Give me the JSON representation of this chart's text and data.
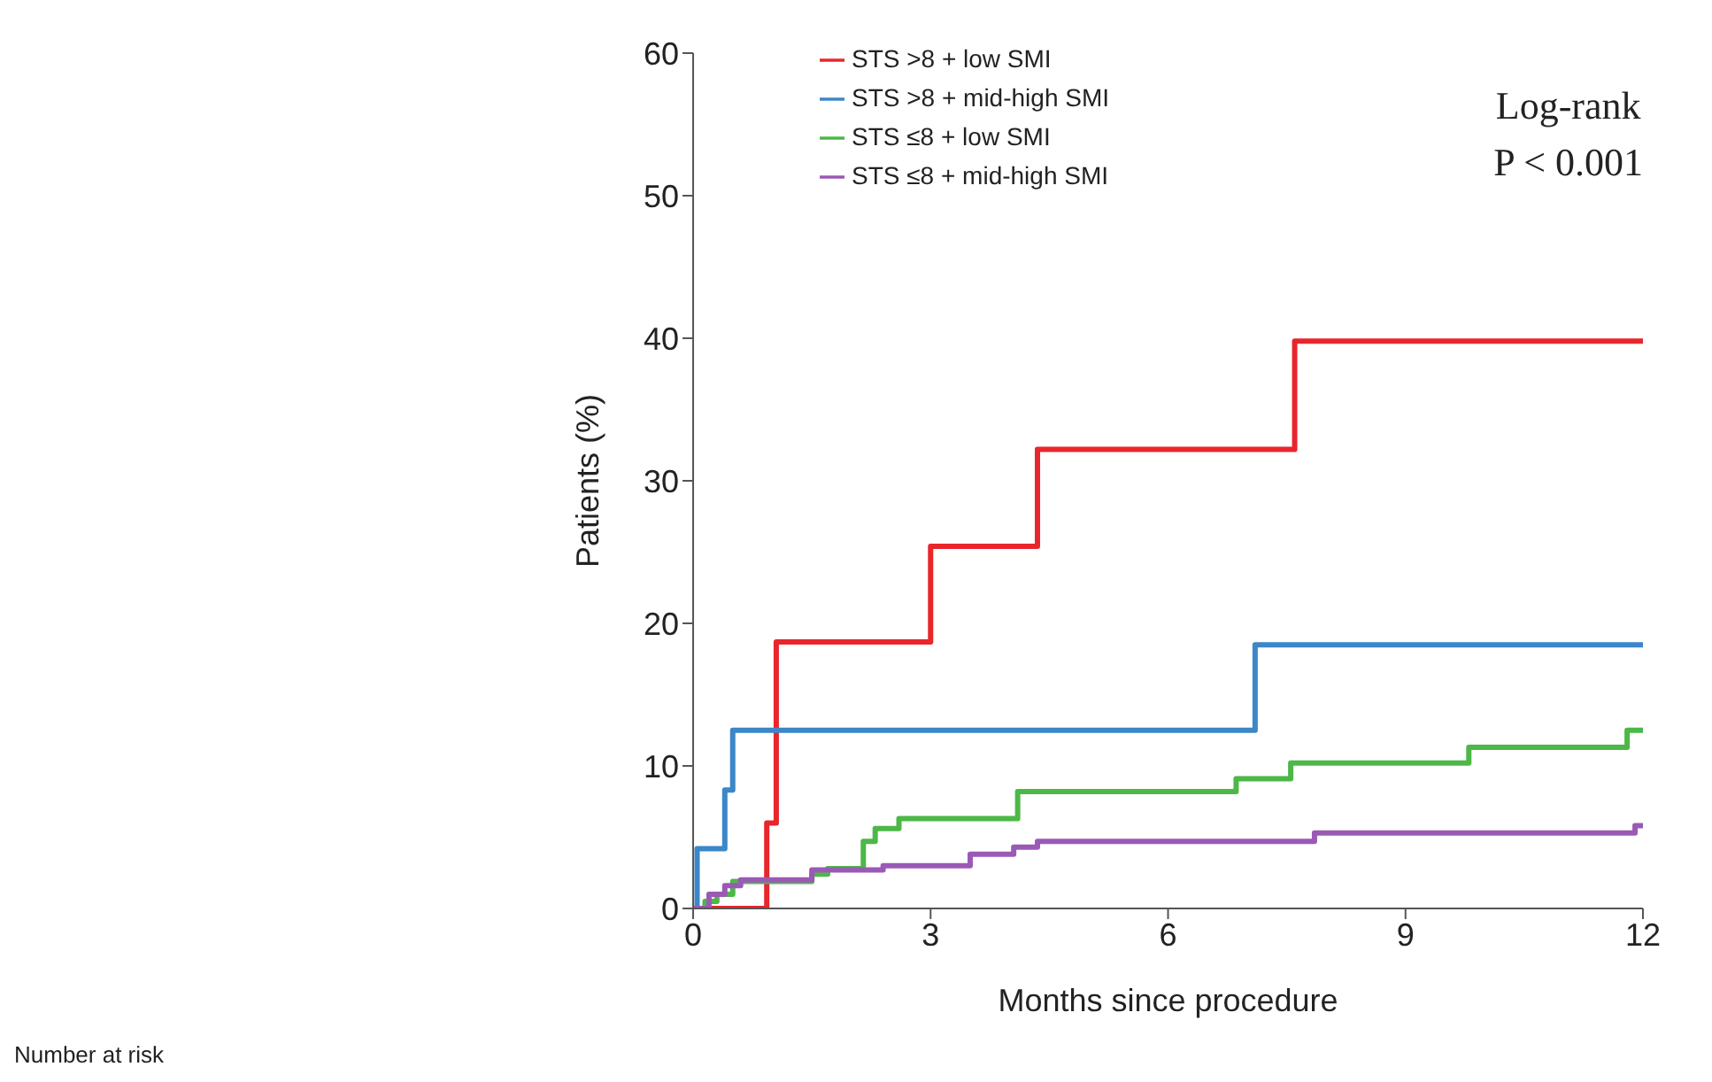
{
  "chart_data": {
    "type": "step",
    "xlabel": "Months since procedure",
    "ylabel": "Patients (%)",
    "xlim": [
      0,
      12
    ],
    "xticks": [
      0,
      3,
      6,
      9,
      12
    ],
    "ylim": [
      0,
      60
    ],
    "yticks": [
      0,
      10,
      20,
      30,
      40,
      50,
      60
    ],
    "grid": false,
    "legend": "top left",
    "marker": "none",
    "line_style": "solid",
    "annotations": [
      "Log-rank",
      "P < 0.001",
      "Number at risk"
    ],
    "series": [
      {
        "name": "STS >8 + low SMI",
        "color": "#e8262b",
        "x": [
          0,
          0.93,
          0.97,
          1.05,
          3.0,
          4.35,
          7.6,
          12
        ],
        "values": [
          0,
          6,
          6,
          18.7,
          25.4,
          32.2,
          39.8,
          39.8
        ]
      },
      {
        "name": "STS >8 + mid-high SMI",
        "color": "#3b87c8",
        "x": [
          0,
          0.05,
          0.4,
          0.5,
          7.1,
          12
        ],
        "values": [
          0,
          4.2,
          8.3,
          12.5,
          18.5,
          18.5
        ]
      },
      {
        "name": "STS ≤8 + low SMI",
        "color": "#4cb847",
        "x": [
          0,
          0.15,
          0.3,
          0.5,
          1.5,
          1.7,
          2.15,
          2.3,
          2.6,
          4.1,
          6.86,
          7.55,
          9.8,
          11.8,
          12
        ],
        "values": [
          0,
          0.5,
          1.0,
          1.9,
          2.4,
          2.8,
          4.7,
          5.6,
          6.3,
          8.2,
          9.1,
          10.2,
          11.3,
          12.5,
          12.5
        ]
      },
      {
        "name": "STS ≤8 + mid-high SMI",
        "color": "#9b59b6",
        "x": [
          0,
          0.2,
          0.4,
          0.6,
          1.5,
          2.4,
          3.5,
          4.05,
          4.35,
          7.85,
          11.9,
          12
        ],
        "values": [
          0,
          1.0,
          1.6,
          2.0,
          2.7,
          3.0,
          3.8,
          4.3,
          4.7,
          5.3,
          5.8,
          5.8
        ]
      }
    ]
  }
}
